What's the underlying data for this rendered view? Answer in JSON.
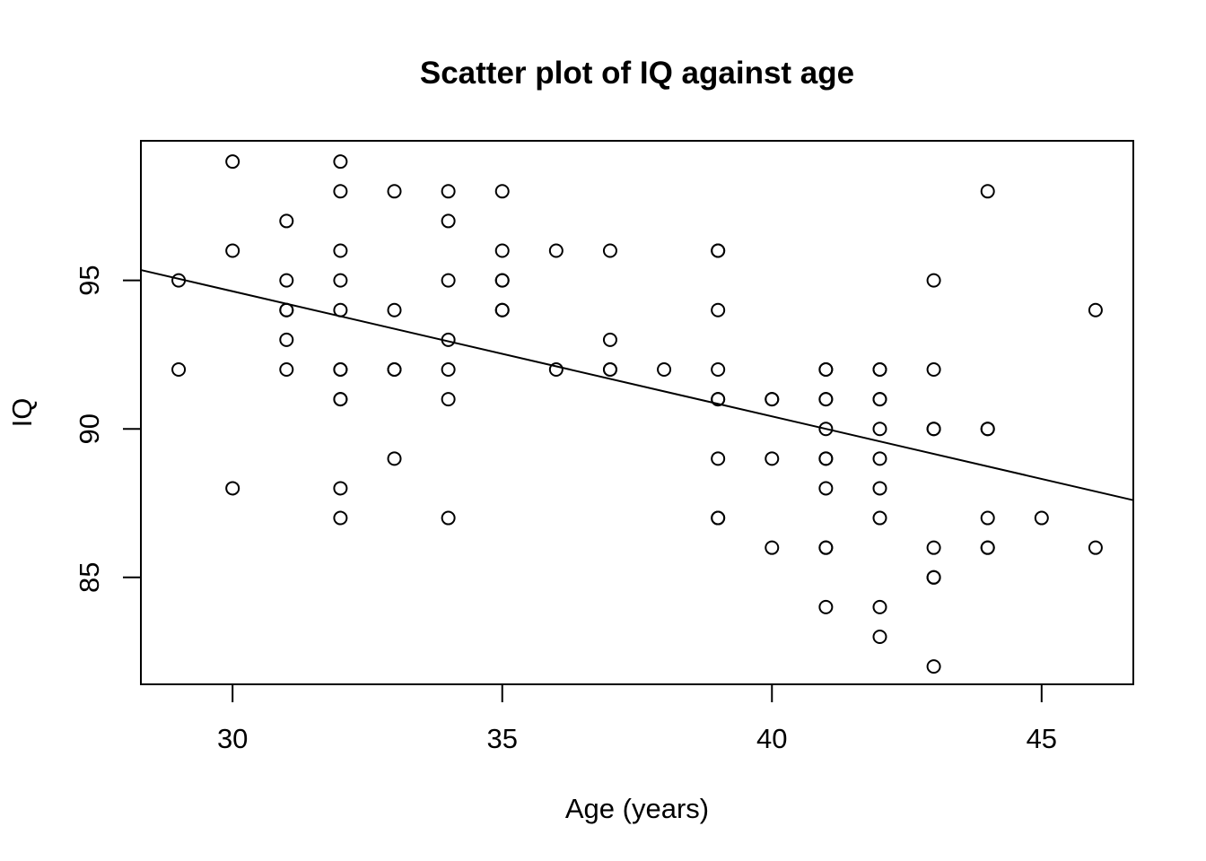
{
  "chart_data": {
    "type": "scatter",
    "title": "Scatter plot of IQ against age",
    "xlabel": "Age (years)",
    "ylabel": "IQ",
    "xlim": [
      28.3,
      46.7
    ],
    "ylim": [
      81.4,
      99.7
    ],
    "x_ticks": [
      30,
      35,
      40,
      45
    ],
    "y_ticks": [
      85,
      90,
      95
    ],
    "grid": false,
    "legend": "none",
    "point_style": "open-circle",
    "colors": {
      "points": "#000000",
      "line": "#000000",
      "background": "#ffffff"
    },
    "regression_line": {
      "x_start": 28.3,
      "y_start": 95.35,
      "x_end": 46.7,
      "y_end": 87.6
    },
    "points": [
      {
        "x": 29,
        "y": 95
      },
      {
        "x": 29,
        "y": 92
      },
      {
        "x": 30,
        "y": 99
      },
      {
        "x": 30,
        "y": 96
      },
      {
        "x": 30,
        "y": 88
      },
      {
        "x": 31,
        "y": 97
      },
      {
        "x": 31,
        "y": 95
      },
      {
        "x": 31,
        "y": 94
      },
      {
        "x": 31,
        "y": 94
      },
      {
        "x": 31,
        "y": 93
      },
      {
        "x": 31,
        "y": 92
      },
      {
        "x": 32,
        "y": 99
      },
      {
        "x": 32,
        "y": 98
      },
      {
        "x": 32,
        "y": 96
      },
      {
        "x": 32,
        "y": 95
      },
      {
        "x": 32,
        "y": 94
      },
      {
        "x": 32,
        "y": 92
      },
      {
        "x": 32,
        "y": 92
      },
      {
        "x": 32,
        "y": 91
      },
      {
        "x": 32,
        "y": 91
      },
      {
        "x": 32,
        "y": 88
      },
      {
        "x": 32,
        "y": 87
      },
      {
        "x": 33,
        "y": 98
      },
      {
        "x": 33,
        "y": 94
      },
      {
        "x": 33,
        "y": 92
      },
      {
        "x": 33,
        "y": 92
      },
      {
        "x": 33,
        "y": 89
      },
      {
        "x": 34,
        "y": 98
      },
      {
        "x": 34,
        "y": 97
      },
      {
        "x": 34,
        "y": 95
      },
      {
        "x": 34,
        "y": 93
      },
      {
        "x": 34,
        "y": 92
      },
      {
        "x": 34,
        "y": 91
      },
      {
        "x": 34,
        "y": 87
      },
      {
        "x": 35,
        "y": 98
      },
      {
        "x": 35,
        "y": 96
      },
      {
        "x": 35,
        "y": 95
      },
      {
        "x": 35,
        "y": 95
      },
      {
        "x": 35,
        "y": 94
      },
      {
        "x": 35,
        "y": 94
      },
      {
        "x": 36,
        "y": 96
      },
      {
        "x": 36,
        "y": 92
      },
      {
        "x": 37,
        "y": 96
      },
      {
        "x": 37,
        "y": 93
      },
      {
        "x": 37,
        "y": 92
      },
      {
        "x": 37,
        "y": 92
      },
      {
        "x": 38,
        "y": 92
      },
      {
        "x": 39,
        "y": 96
      },
      {
        "x": 39,
        "y": 96
      },
      {
        "x": 39,
        "y": 94
      },
      {
        "x": 39,
        "y": 92
      },
      {
        "x": 39,
        "y": 91
      },
      {
        "x": 39,
        "y": 91
      },
      {
        "x": 39,
        "y": 89
      },
      {
        "x": 39,
        "y": 87
      },
      {
        "x": 39,
        "y": 87
      },
      {
        "x": 40,
        "y": 91
      },
      {
        "x": 40,
        "y": 91
      },
      {
        "x": 40,
        "y": 89
      },
      {
        "x": 40,
        "y": 86
      },
      {
        "x": 41,
        "y": 92
      },
      {
        "x": 41,
        "y": 92
      },
      {
        "x": 41,
        "y": 91
      },
      {
        "x": 41,
        "y": 91
      },
      {
        "x": 41,
        "y": 90
      },
      {
        "x": 41,
        "y": 89
      },
      {
        "x": 41,
        "y": 89
      },
      {
        "x": 41,
        "y": 88
      },
      {
        "x": 41,
        "y": 86
      },
      {
        "x": 41,
        "y": 86
      },
      {
        "x": 41,
        "y": 84
      },
      {
        "x": 42,
        "y": 92
      },
      {
        "x": 42,
        "y": 92
      },
      {
        "x": 42,
        "y": 91
      },
      {
        "x": 42,
        "y": 91
      },
      {
        "x": 42,
        "y": 90
      },
      {
        "x": 42,
        "y": 89
      },
      {
        "x": 42,
        "y": 88
      },
      {
        "x": 42,
        "y": 87
      },
      {
        "x": 42,
        "y": 84
      },
      {
        "x": 42,
        "y": 83
      },
      {
        "x": 43,
        "y": 95
      },
      {
        "x": 43,
        "y": 92
      },
      {
        "x": 43,
        "y": 90
      },
      {
        "x": 43,
        "y": 90
      },
      {
        "x": 43,
        "y": 86
      },
      {
        "x": 43,
        "y": 85
      },
      {
        "x": 43,
        "y": 85
      },
      {
        "x": 43,
        "y": 82
      },
      {
        "x": 44,
        "y": 98
      },
      {
        "x": 44,
        "y": 90
      },
      {
        "x": 44,
        "y": 90
      },
      {
        "x": 44,
        "y": 87
      },
      {
        "x": 44,
        "y": 86
      },
      {
        "x": 44,
        "y": 86
      },
      {
        "x": 45,
        "y": 87
      },
      {
        "x": 46,
        "y": 94
      },
      {
        "x": 46,
        "y": 86
      }
    ]
  }
}
